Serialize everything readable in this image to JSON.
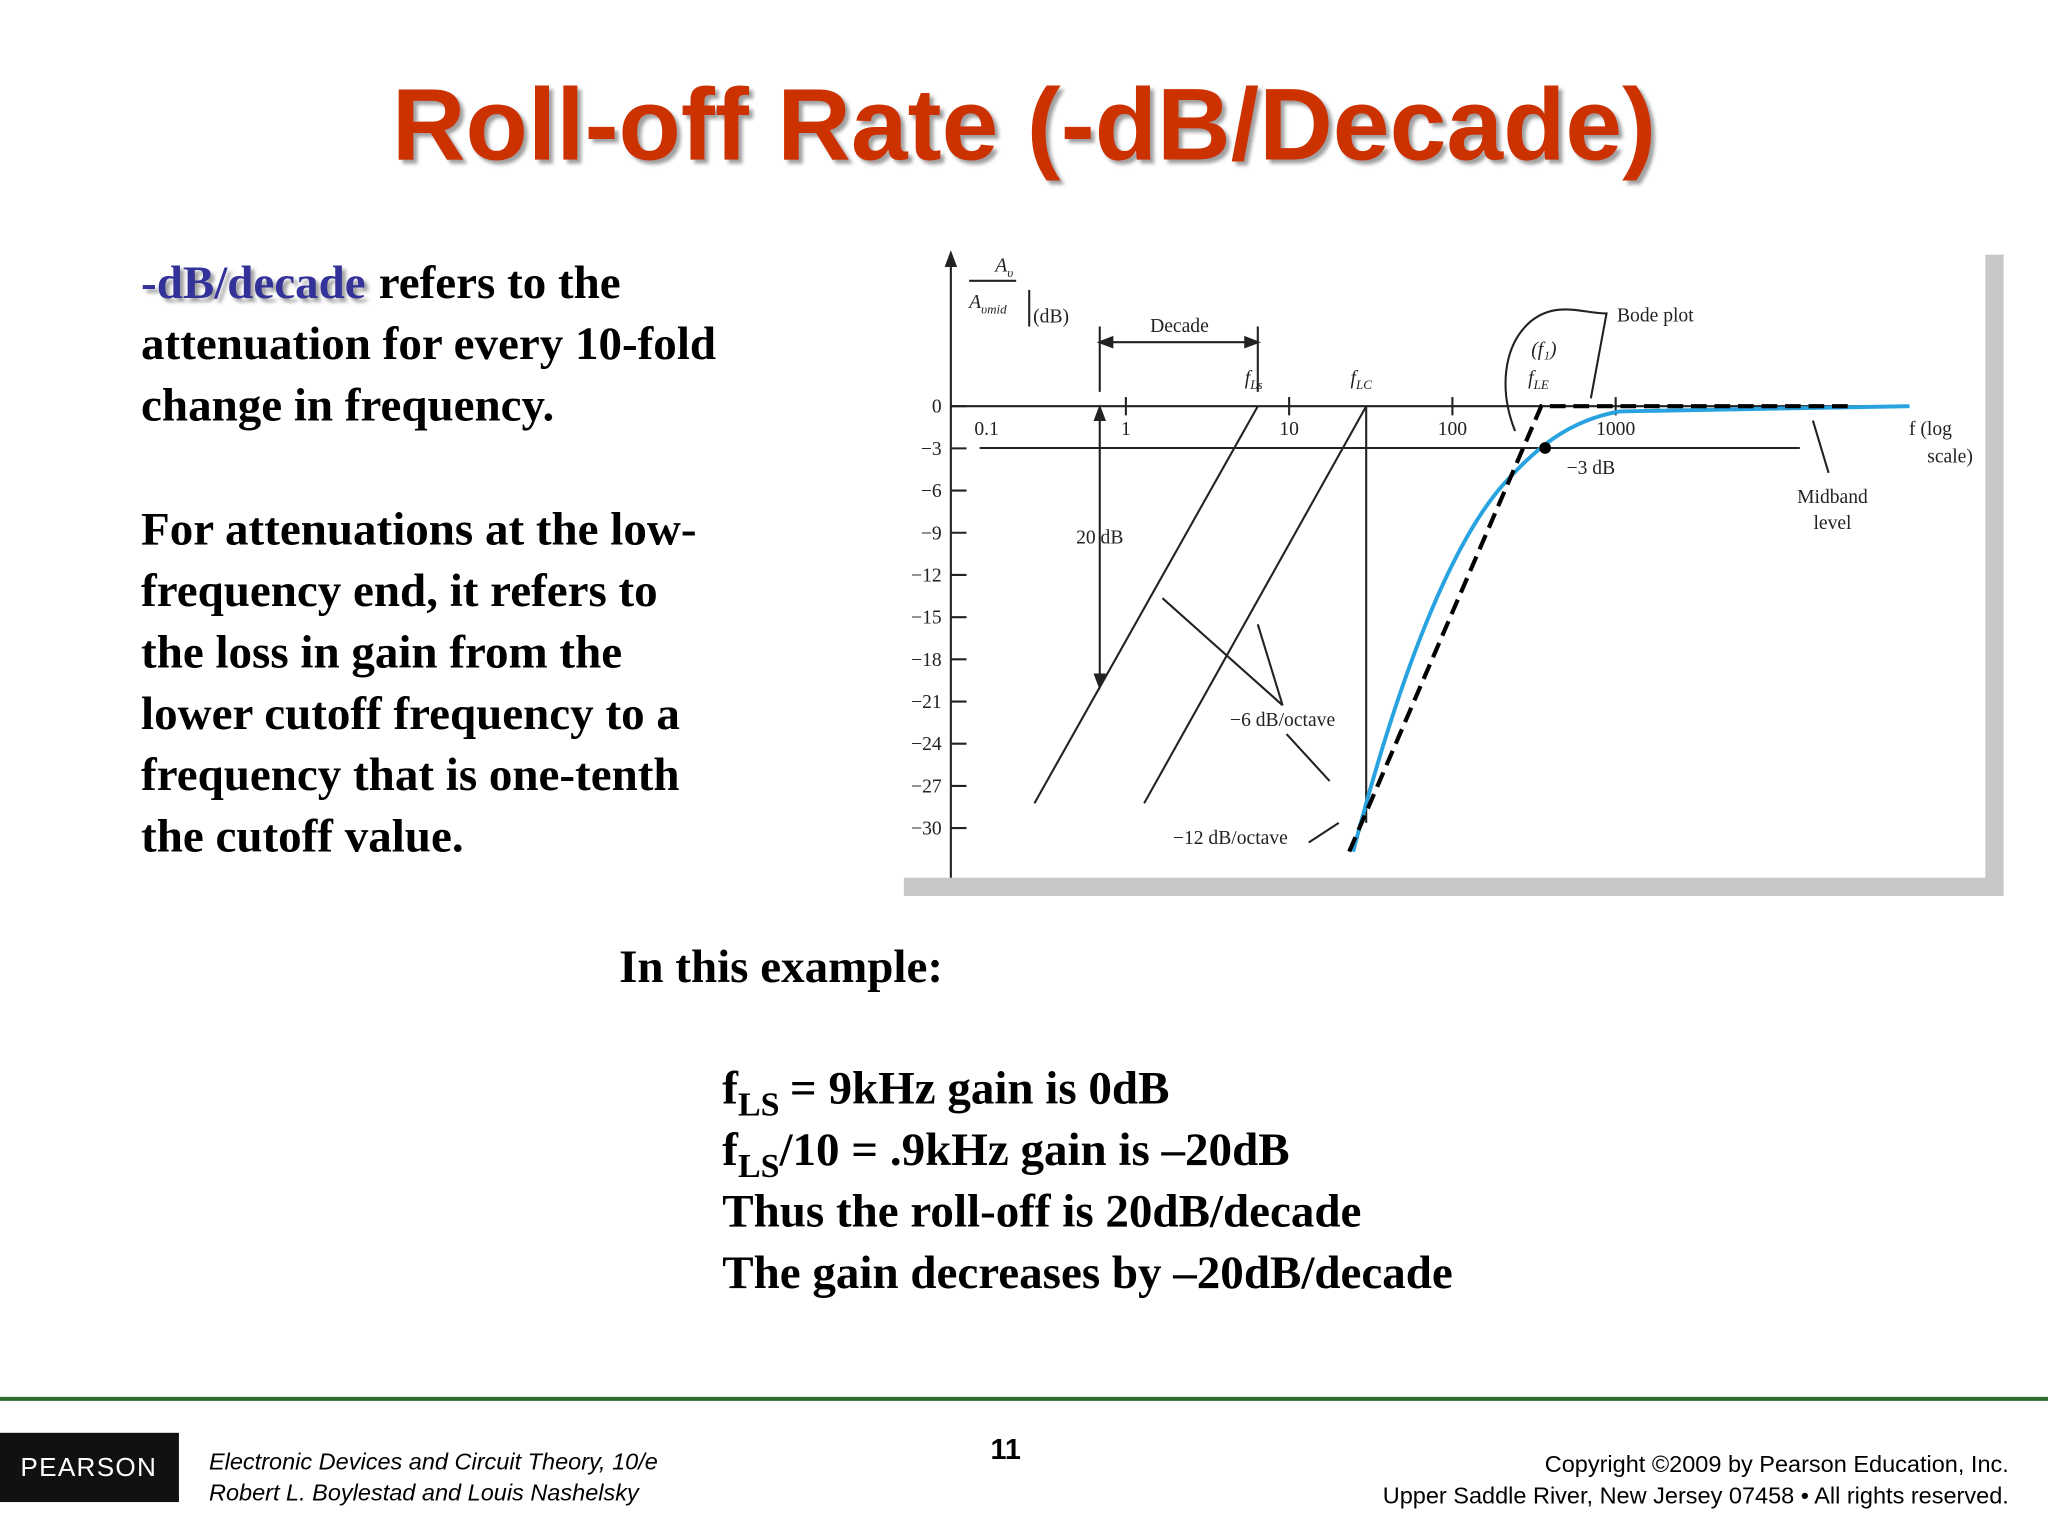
{
  "title": "Roll-off Rate (-dB/Decade)",
  "paragraph1": {
    "term": "-dB/decade",
    "lines": [
      "refers to the",
      "attenuation for every 10-fold",
      "change in frequency."
    ]
  },
  "paragraph2": {
    "lines": [
      "For attenuations at the low-",
      "frequency end, it refers to",
      "the loss in gain from the",
      "lower cutoff frequency to a",
      "frequency that is one-tenth",
      "the cutoff value."
    ]
  },
  "example": {
    "heading": "In this example:",
    "subscript_lines": [
      {
        "f": "f",
        "sub": "LS",
        "rest": "= 9kHz gain is 0dB"
      },
      {
        "f": "f",
        "sub": "LS",
        "rest": "/10 = .9kHz gain is –20dB"
      }
    ],
    "lines": [
      "Thus the roll-off is 20dB/decade",
      "The gain decreases by –20dB/decade"
    ]
  },
  "figure": {
    "y_label": {
      "numerator": "A",
      "numerator_sub": "υ",
      "denominator": "A",
      "denominator_sub": "υmid",
      "unit": "(dB)"
    },
    "y_ticks": [
      "0",
      "−3",
      "−6",
      "−9",
      "−12",
      "−15",
      "−18",
      "−21",
      "−24",
      "−27",
      "−30"
    ],
    "x_ticks": [
      "0.1",
      "1",
      "10",
      "100",
      "1000"
    ],
    "x_label": [
      "f (log",
      "scale)"
    ],
    "decade": "Decade",
    "twenty_db": "20 dB",
    "f_ls": {
      "f": "f",
      "sub": "Ls"
    },
    "f_lc": {
      "f": "f",
      "sub": "LC"
    },
    "f1": "(f₁)",
    "f_le": {
      "f": "f",
      "sub": "LE"
    },
    "bode_plot": "Bode plot",
    "minus_3db": "−3 dB",
    "midband": [
      "Midband",
      "level"
    ],
    "six_db": "−6 dB/octave",
    "twelve_db": "−12 dB/octave"
  },
  "footer": {
    "logo": "PEARSON",
    "page": "11",
    "book": [
      "Electronic Devices and Circuit Theory, 10/e",
      "Robert L. Boylestad and Louis Nashelsky"
    ],
    "copyright": [
      "Copyright ©2009 by Pearson Education, Inc.",
      "Upper Saddle River, New Jersey 07458 • All rights reserved."
    ]
  }
}
